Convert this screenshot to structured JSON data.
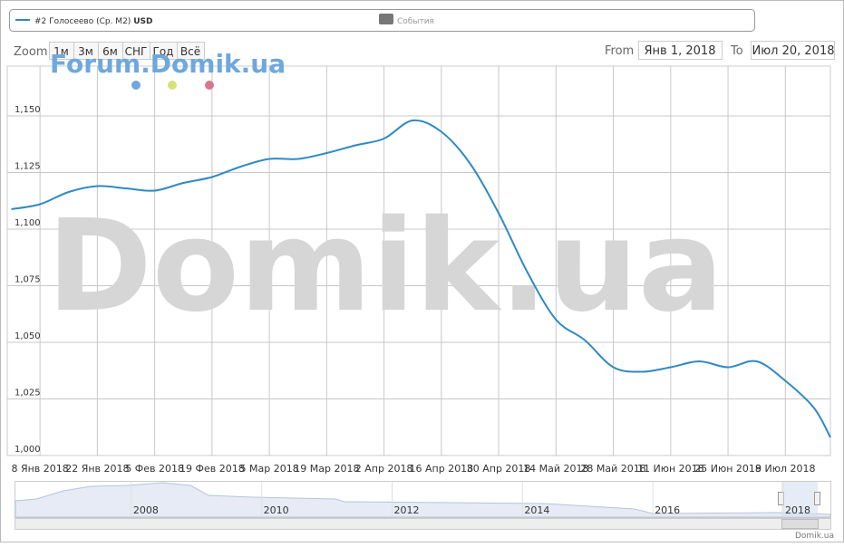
{
  "legend": {
    "events_label": "События"
  },
  "range_selector": {
    "zoom_label": "Zoom",
    "buttons": [
      "1м",
      "3м",
      "6м",
      "СНГ",
      "Год",
      "Всё"
    ],
    "from_label": "From",
    "from_value": "Янв 1, 2018",
    "to_label": "To",
    "to_value": "Июл 20, 2018"
  },
  "watermarks": {
    "small": "Forum.Domik.ua",
    "big": "Domik.ua"
  },
  "credit": "Domik.ua",
  "chart_data": {
    "type": "line",
    "unit": "USD",
    "x": [
      "2018-01-01",
      "2018-01-08",
      "2018-01-15",
      "2018-01-22",
      "2018-01-29",
      "2018-02-05",
      "2018-02-12",
      "2018-02-19",
      "2018-02-26",
      "2018-03-05",
      "2018-03-12",
      "2018-03-19",
      "2018-03-26",
      "2018-04-02",
      "2018-04-09",
      "2018-04-16",
      "2018-04-23",
      "2018-04-30",
      "2018-05-07",
      "2018-05-14",
      "2018-05-21",
      "2018-05-28",
      "2018-06-04",
      "2018-06-11",
      "2018-06-18",
      "2018-06-25",
      "2018-07-02",
      "2018-07-09",
      "2018-07-16",
      "2018-07-20"
    ],
    "series": [
      {
        "name": "#2 Голосеево (Ср. M2)",
        "color": "#2f8ac4",
        "values": [
          1108.8,
          1111,
          1116.4,
          1119,
          1118,
          1117,
          1120.4,
          1123,
          1127.6,
          1131,
          1131,
          1133.6,
          1137,
          1140,
          1148,
          1143,
          1129,
          1107,
          1081,
          1060,
          1051,
          1039,
          1037,
          1039,
          1041.6,
          1039,
          1041.6,
          1033,
          1021,
          1008
        ]
      }
    ],
    "xlim": [
      "2017-12-31",
      "2018-07-20"
    ],
    "xticks": [
      {
        "value": "2018-01-08",
        "label": "8 Янв 2018"
      },
      {
        "value": "2018-01-22",
        "label": "22 Янв 2018"
      },
      {
        "value": "2018-02-05",
        "label": "5 Фев 2018"
      },
      {
        "value": "2018-02-19",
        "label": "19 Фев 2018"
      },
      {
        "value": "2018-03-05",
        "label": "5 Мар 2018"
      },
      {
        "value": "2018-03-19",
        "label": "19 Мар 2018"
      },
      {
        "value": "2018-04-02",
        "label": "2 Апр 2018"
      },
      {
        "value": "2018-04-16",
        "label": "16 Апр 2018"
      },
      {
        "value": "2018-04-30",
        "label": "30 Апр 2018"
      },
      {
        "value": "2018-05-14",
        "label": "14 Май 2018"
      },
      {
        "value": "2018-05-28",
        "label": "28 Май 2018"
      },
      {
        "value": "2018-06-11",
        "label": "11 Июн 2018"
      },
      {
        "value": "2018-06-25",
        "label": "25 Июн 2018"
      },
      {
        "value": "2018-07-09",
        "label": "9 Июл 2018"
      }
    ],
    "ylim": [
      1000,
      1172
    ],
    "yticks": [
      {
        "value": 1000,
        "label": "1,000"
      },
      {
        "value": 1025,
        "label": "1,025"
      },
      {
        "value": 1050,
        "label": "1,050"
      },
      {
        "value": 1075,
        "label": "1,075"
      },
      {
        "value": 1100,
        "label": "1,100"
      },
      {
        "value": 1125,
        "label": "1,125"
      },
      {
        "value": 1150,
        "label": "1,150"
      }
    ],
    "grid": true
  },
  "navigator": {
    "xlim": [
      2006,
      2018.5
    ],
    "xticks": [
      2008,
      2010,
      2012,
      2014,
      2016,
      2018
    ]
  }
}
